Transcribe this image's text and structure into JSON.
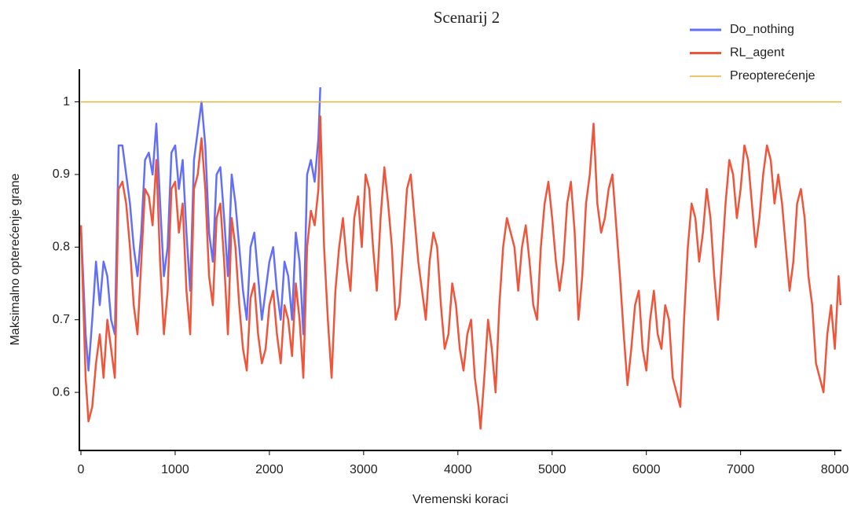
{
  "chart_data": {
    "type": "line",
    "title": "Scenarij 2",
    "x_label": "Vremenski koraci",
    "y_label": "Maksimalno opterećenje grane",
    "xlim": [
      0,
      8070
    ],
    "ylim": [
      0.52,
      1.045
    ],
    "xticks": [
      0,
      1000,
      2000,
      3000,
      4000,
      5000,
      6000,
      7000,
      8000
    ],
    "yticks": [
      0.6,
      0.7,
      0.8,
      0.9,
      1
    ],
    "grid": false,
    "legend": "top-right",
    "series": [
      {
        "name": "Do_nothing",
        "color": "#636efa",
        "x": [
          0,
          50,
          80,
          120,
          160,
          200,
          240,
          280,
          320,
          360,
          400,
          440,
          480,
          520,
          560,
          600,
          640,
          680,
          720,
          760,
          800,
          840,
          880,
          920,
          960,
          1000,
          1040,
          1080,
          1120,
          1160,
          1200,
          1240,
          1280,
          1320,
          1360,
          1400,
          1440,
          1480,
          1520,
          1560,
          1600,
          1640,
          1680,
          1720,
          1760,
          1800,
          1840,
          1880,
          1920,
          1960,
          2000,
          2040,
          2080,
          2120,
          2160,
          2200,
          2240,
          2280,
          2320,
          2360,
          2400,
          2440,
          2480,
          2520,
          2540
        ],
        "values": [
          0.83,
          0.68,
          0.63,
          0.7,
          0.78,
          0.72,
          0.78,
          0.76,
          0.7,
          0.68,
          0.94,
          0.94,
          0.9,
          0.86,
          0.8,
          0.76,
          0.82,
          0.92,
          0.93,
          0.9,
          0.97,
          0.86,
          0.76,
          0.8,
          0.93,
          0.94,
          0.88,
          0.92,
          0.82,
          0.74,
          0.92,
          0.96,
          1.0,
          0.94,
          0.82,
          0.78,
          0.9,
          0.91,
          0.84,
          0.76,
          0.9,
          0.86,
          0.8,
          0.74,
          0.7,
          0.8,
          0.82,
          0.76,
          0.7,
          0.74,
          0.78,
          0.8,
          0.74,
          0.7,
          0.78,
          0.76,
          0.7,
          0.82,
          0.78,
          0.68,
          0.9,
          0.92,
          0.89,
          0.95,
          1.02
        ]
      },
      {
        "name": "RL_agent",
        "color": "#ef553b",
        "x": [
          0,
          50,
          80,
          120,
          160,
          200,
          240,
          280,
          320,
          360,
          400,
          440,
          480,
          520,
          560,
          600,
          640,
          680,
          720,
          760,
          800,
          840,
          880,
          920,
          960,
          1000,
          1040,
          1080,
          1120,
          1160,
          1200,
          1240,
          1280,
          1320,
          1360,
          1400,
          1440,
          1480,
          1520,
          1560,
          1600,
          1640,
          1680,
          1720,
          1760,
          1800,
          1840,
          1880,
          1920,
          1960,
          2000,
          2040,
          2080,
          2120,
          2160,
          2200,
          2240,
          2280,
          2320,
          2360,
          2400,
          2440,
          2480,
          2520,
          2540,
          2580,
          2620,
          2660,
          2700,
          2740,
          2780,
          2820,
          2860,
          2900,
          2940,
          2980,
          3020,
          3060,
          3100,
          3140,
          3180,
          3220,
          3260,
          3300,
          3340,
          3380,
          3420,
          3460,
          3500,
          3540,
          3580,
          3620,
          3660,
          3700,
          3740,
          3780,
          3820,
          3860,
          3900,
          3940,
          3980,
          4020,
          4060,
          4100,
          4140,
          4180,
          4220,
          4240,
          4280,
          4320,
          4360,
          4400,
          4440,
          4480,
          4520,
          4560,
          4600,
          4640,
          4680,
          4720,
          4760,
          4800,
          4840,
          4880,
          4920,
          4960,
          5000,
          5040,
          5080,
          5120,
          5160,
          5200,
          5240,
          5280,
          5320,
          5360,
          5400,
          5440,
          5480,
          5520,
          5560,
          5600,
          5640,
          5680,
          5720,
          5760,
          5800,
          5840,
          5880,
          5920,
          5960,
          6000,
          6040,
          6080,
          6120,
          6160,
          6200,
          6240,
          6280,
          6320,
          6360,
          6400,
          6440,
          6480,
          6520,
          6560,
          6600,
          6640,
          6680,
          6720,
          6760,
          6800,
          6840,
          6880,
          6920,
          6960,
          7000,
          7040,
          7080,
          7120,
          7160,
          7200,
          7240,
          7280,
          7320,
          7360,
          7400,
          7440,
          7480,
          7520,
          7560,
          7600,
          7640,
          7680,
          7720,
          7760,
          7800,
          7840,
          7880,
          7920,
          7960,
          8000,
          8040,
          8060
        ],
        "values": [
          0.83,
          0.62,
          0.56,
          0.58,
          0.64,
          0.68,
          0.62,
          0.7,
          0.66,
          0.62,
          0.88,
          0.89,
          0.86,
          0.8,
          0.72,
          0.68,
          0.78,
          0.88,
          0.87,
          0.83,
          0.92,
          0.78,
          0.68,
          0.74,
          0.88,
          0.89,
          0.82,
          0.86,
          0.74,
          0.68,
          0.88,
          0.9,
          0.95,
          0.88,
          0.76,
          0.72,
          0.84,
          0.86,
          0.78,
          0.68,
          0.84,
          0.8,
          0.72,
          0.66,
          0.63,
          0.73,
          0.75,
          0.68,
          0.64,
          0.66,
          0.72,
          0.74,
          0.68,
          0.64,
          0.72,
          0.7,
          0.65,
          0.75,
          0.7,
          0.62,
          0.8,
          0.85,
          0.83,
          0.88,
          0.98,
          0.8,
          0.7,
          0.62,
          0.74,
          0.8,
          0.84,
          0.78,
          0.74,
          0.84,
          0.87,
          0.8,
          0.9,
          0.88,
          0.8,
          0.74,
          0.84,
          0.91,
          0.86,
          0.8,
          0.7,
          0.72,
          0.8,
          0.88,
          0.9,
          0.84,
          0.78,
          0.74,
          0.7,
          0.78,
          0.82,
          0.8,
          0.72,
          0.66,
          0.68,
          0.75,
          0.72,
          0.66,
          0.63,
          0.68,
          0.7,
          0.62,
          0.58,
          0.55,
          0.62,
          0.7,
          0.66,
          0.6,
          0.72,
          0.8,
          0.84,
          0.82,
          0.8,
          0.74,
          0.8,
          0.83,
          0.78,
          0.72,
          0.7,
          0.8,
          0.86,
          0.89,
          0.84,
          0.78,
          0.74,
          0.78,
          0.86,
          0.89,
          0.82,
          0.7,
          0.76,
          0.86,
          0.9,
          0.97,
          0.86,
          0.82,
          0.84,
          0.88,
          0.9,
          0.83,
          0.76,
          0.68,
          0.61,
          0.66,
          0.72,
          0.74,
          0.66,
          0.63,
          0.7,
          0.74,
          0.68,
          0.66,
          0.72,
          0.7,
          0.62,
          0.6,
          0.58,
          0.7,
          0.8,
          0.86,
          0.84,
          0.78,
          0.82,
          0.88,
          0.84,
          0.76,
          0.7,
          0.78,
          0.86,
          0.92,
          0.9,
          0.84,
          0.88,
          0.94,
          0.92,
          0.86,
          0.8,
          0.84,
          0.9,
          0.94,
          0.92,
          0.86,
          0.9,
          0.86,
          0.8,
          0.74,
          0.78,
          0.86,
          0.88,
          0.84,
          0.76,
          0.72,
          0.64,
          0.62,
          0.6,
          0.68,
          0.72,
          0.66,
          0.76,
          0.72
        ]
      },
      {
        "name": "Preopterećenje",
        "color": "#e6b43c",
        "x": [
          0,
          8070
        ],
        "values": [
          1,
          1
        ]
      }
    ]
  }
}
